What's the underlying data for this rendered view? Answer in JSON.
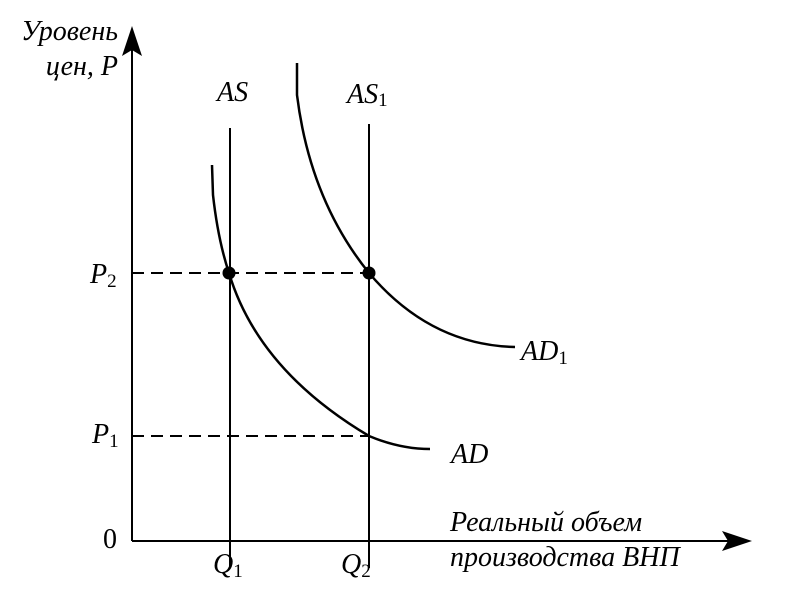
{
  "y_axis": {
    "line1": "Уровень",
    "line2": "цен, P"
  },
  "x_axis": {
    "line1": "Реальный объем",
    "line2": "производства ВНП"
  },
  "origin": "0",
  "supply": {
    "as": {
      "main": "AS"
    },
    "as1": {
      "main": "AS",
      "sub": "1"
    }
  },
  "demand": {
    "ad": {
      "main": "AD"
    },
    "ad1": {
      "main": "AD",
      "sub": "1"
    }
  },
  "prices": {
    "p1": {
      "main": "P",
      "sub": "1"
    },
    "p2": {
      "main": "P",
      "sub": "2"
    }
  },
  "quantities": {
    "q1": {
      "main": "Q",
      "sub": "1"
    },
    "q2": {
      "main": "Q",
      "sub": "2"
    }
  },
  "colors": {
    "ink": "#000000",
    "background": "#ffffff"
  }
}
